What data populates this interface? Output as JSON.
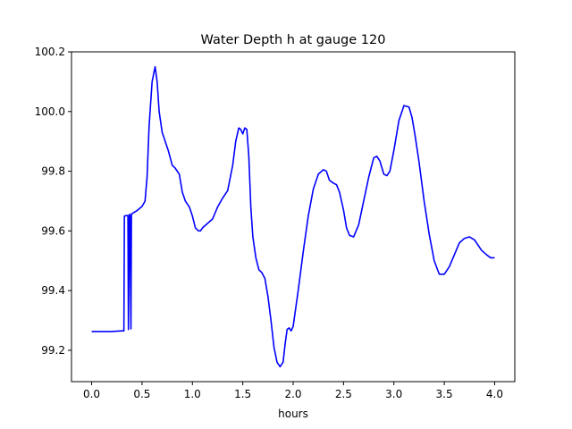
{
  "chart_data": {
    "type": "line",
    "title": "Water Depth h at gauge 120",
    "xlabel": "hours",
    "ylabel": "",
    "xlim": [
      -0.2,
      4.2
    ],
    "ylim": [
      99.095,
      100.2
    ],
    "xticks": [
      "0.0",
      "0.5",
      "1.0",
      "1.5",
      "2.0",
      "2.5",
      "3.0",
      "3.5",
      "4.0"
    ],
    "yticks": [
      "99.2",
      "99.4",
      "99.6",
      "99.8",
      "100.0",
      "100.2"
    ],
    "grid": false,
    "series": [
      {
        "color": "#0000ff",
        "x": [
          0.0,
          0.1,
          0.2,
          0.3,
          0.32,
          0.325,
          0.36,
          0.365,
          0.375,
          0.38,
          0.39,
          0.395,
          0.405,
          0.41,
          0.45,
          0.5,
          0.53,
          0.55,
          0.57,
          0.6,
          0.63,
          0.65,
          0.67,
          0.7,
          0.73,
          0.76,
          0.8,
          0.83,
          0.87,
          0.9,
          0.93,
          0.97,
          1.0,
          1.03,
          1.06,
          1.08,
          1.1,
          1.15,
          1.2,
          1.25,
          1.3,
          1.35,
          1.4,
          1.43,
          1.46,
          1.48,
          1.5,
          1.52,
          1.54,
          1.56,
          1.58,
          1.6,
          1.63,
          1.66,
          1.69,
          1.72,
          1.75,
          1.78,
          1.81,
          1.84,
          1.87,
          1.9,
          1.92,
          1.94,
          1.96,
          1.98,
          2.0,
          2.05,
          2.1,
          2.15,
          2.2,
          2.25,
          2.3,
          2.33,
          2.36,
          2.4,
          2.43,
          2.46,
          2.5,
          2.53,
          2.56,
          2.6,
          2.65,
          2.7,
          2.75,
          2.8,
          2.83,
          2.86,
          2.9,
          2.93,
          2.96,
          3.0,
          3.05,
          3.1,
          3.15,
          3.18,
          3.21,
          3.25,
          3.3,
          3.35,
          3.4,
          3.45,
          3.5,
          3.55,
          3.6,
          3.65,
          3.7,
          3.75,
          3.8,
          3.83,
          3.87,
          3.92,
          3.96,
          4.0
        ],
        "y": [
          99.263,
          99.263,
          99.263,
          99.265,
          99.265,
          99.65,
          99.652,
          99.27,
          99.655,
          99.655,
          99.272,
          99.657,
          99.658,
          99.66,
          99.668,
          99.682,
          99.7,
          99.78,
          99.95,
          100.1,
          100.15,
          100.1,
          100.0,
          99.93,
          99.9,
          99.87,
          99.82,
          99.81,
          99.79,
          99.73,
          99.7,
          99.68,
          99.65,
          99.61,
          99.6,
          99.6,
          99.61,
          99.625,
          99.64,
          99.68,
          99.71,
          99.735,
          99.82,
          99.9,
          99.945,
          99.94,
          99.925,
          99.945,
          99.94,
          99.85,
          99.68,
          99.58,
          99.51,
          99.47,
          99.46,
          99.44,
          99.38,
          99.3,
          99.21,
          99.16,
          99.145,
          99.16,
          99.22,
          99.27,
          99.275,
          99.265,
          99.28,
          99.4,
          99.53,
          99.65,
          99.74,
          99.79,
          99.805,
          99.8,
          99.77,
          99.76,
          99.755,
          99.73,
          99.67,
          99.61,
          99.585,
          99.58,
          99.62,
          99.7,
          99.78,
          99.845,
          99.85,
          99.835,
          99.79,
          99.785,
          99.8,
          99.87,
          99.97,
          100.02,
          100.015,
          99.98,
          99.92,
          99.83,
          99.7,
          99.59,
          99.5,
          99.455,
          99.455,
          99.48,
          99.52,
          99.56,
          99.575,
          99.58,
          99.57,
          99.555,
          99.535,
          99.52,
          99.51,
          99.51
        ]
      }
    ]
  }
}
